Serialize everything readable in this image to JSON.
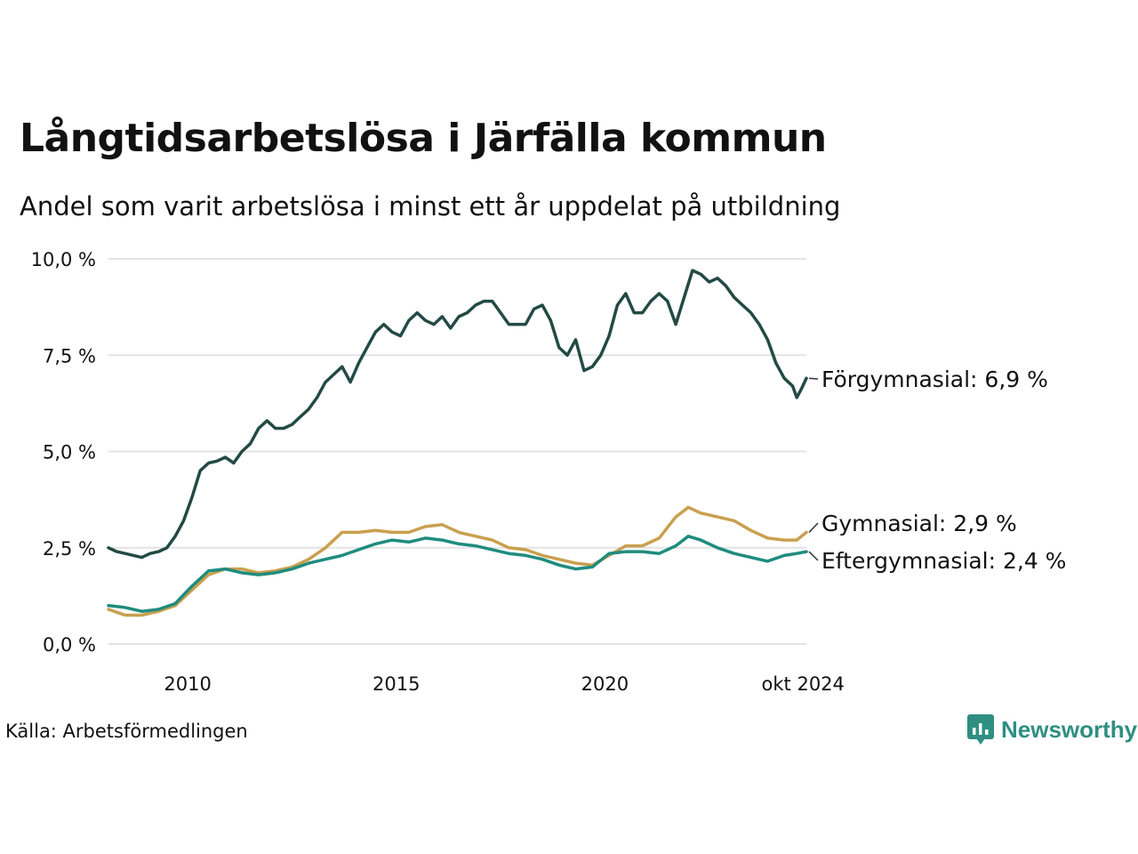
{
  "title": "Långtidsarbetslösa i Järfälla kommun",
  "subtitle": "Andel som varit arbetslösa i minst ett år uppdelat på utbildning",
  "source": "Källa: Arbetsförmedlingen",
  "brand": {
    "name": "Newsworthy",
    "icon": "newsworthy-logo-icon",
    "color": "#2e8f82"
  },
  "chart_data": {
    "type": "line",
    "title": "Långtidsarbetslösa i Järfälla kommun",
    "subtitle": "Andel som varit arbetslösa i minst ett år uppdelat på utbildning",
    "xlabel": "",
    "ylabel": "",
    "xlim": [
      2008.1,
      2024.83
    ],
    "ylim": [
      0,
      10
    ],
    "grid": true,
    "x_ticks": [
      {
        "value": 2010,
        "label": "2010"
      },
      {
        "value": 2015,
        "label": "2015"
      },
      {
        "value": 2020,
        "label": "2020"
      },
      {
        "value": 2024.75,
        "label": "okt 2024"
      }
    ],
    "y_ticks": [
      {
        "value": 0,
        "label": "0,0 %"
      },
      {
        "value": 2.5,
        "label": "2,5 %"
      },
      {
        "value": 5,
        "label": "5,0 %"
      },
      {
        "value": 7.5,
        "label": "7,5 %"
      },
      {
        "value": 10,
        "label": "10,0 %"
      }
    ],
    "series": [
      {
        "name": "Förgymnasial",
        "end_label": "Förgymnasial: 6,9 %",
        "color": "#234a45",
        "points": [
          [
            2008.1,
            2.5
          ],
          [
            2008.3,
            2.4
          ],
          [
            2008.5,
            2.35
          ],
          [
            2008.7,
            2.3
          ],
          [
            2008.9,
            2.25
          ],
          [
            2009.1,
            2.35
          ],
          [
            2009.3,
            2.4
          ],
          [
            2009.5,
            2.5
          ],
          [
            2009.7,
            2.8
          ],
          [
            2009.9,
            3.2
          ],
          [
            2010.1,
            3.8
          ],
          [
            2010.3,
            4.5
          ],
          [
            2010.5,
            4.7
          ],
          [
            2010.7,
            4.75
          ],
          [
            2010.9,
            4.85
          ],
          [
            2011.1,
            4.7
          ],
          [
            2011.3,
            5.0
          ],
          [
            2011.5,
            5.2
          ],
          [
            2011.7,
            5.6
          ],
          [
            2011.9,
            5.8
          ],
          [
            2012.1,
            5.6
          ],
          [
            2012.3,
            5.6
          ],
          [
            2012.5,
            5.7
          ],
          [
            2012.7,
            5.9
          ],
          [
            2012.9,
            6.1
          ],
          [
            2013.1,
            6.4
          ],
          [
            2013.3,
            6.8
          ],
          [
            2013.5,
            7.0
          ],
          [
            2013.7,
            7.2
          ],
          [
            2013.9,
            6.8
          ],
          [
            2014.1,
            7.3
          ],
          [
            2014.3,
            7.7
          ],
          [
            2014.5,
            8.1
          ],
          [
            2014.7,
            8.3
          ],
          [
            2014.9,
            8.1
          ],
          [
            2015.1,
            8.0
          ],
          [
            2015.3,
            8.4
          ],
          [
            2015.5,
            8.6
          ],
          [
            2015.7,
            8.4
          ],
          [
            2015.9,
            8.3
          ],
          [
            2016.1,
            8.5
          ],
          [
            2016.3,
            8.2
          ],
          [
            2016.5,
            8.5
          ],
          [
            2016.7,
            8.6
          ],
          [
            2016.9,
            8.8
          ],
          [
            2017.1,
            8.9
          ],
          [
            2017.3,
            8.9
          ],
          [
            2017.5,
            8.6
          ],
          [
            2017.7,
            8.3
          ],
          [
            2017.9,
            8.3
          ],
          [
            2018.1,
            8.3
          ],
          [
            2018.3,
            8.7
          ],
          [
            2018.5,
            8.8
          ],
          [
            2018.7,
            8.4
          ],
          [
            2018.9,
            7.7
          ],
          [
            2019.1,
            7.5
          ],
          [
            2019.3,
            7.9
          ],
          [
            2019.5,
            7.1
          ],
          [
            2019.7,
            7.2
          ],
          [
            2019.9,
            7.5
          ],
          [
            2020.1,
            8.0
          ],
          [
            2020.3,
            8.8
          ],
          [
            2020.5,
            9.1
          ],
          [
            2020.7,
            8.6
          ],
          [
            2020.9,
            8.6
          ],
          [
            2021.1,
            8.9
          ],
          [
            2021.3,
            9.1
          ],
          [
            2021.5,
            8.9
          ],
          [
            2021.7,
            8.3
          ],
          [
            2021.9,
            9.0
          ],
          [
            2022.1,
            9.7
          ],
          [
            2022.3,
            9.6
          ],
          [
            2022.5,
            9.4
          ],
          [
            2022.7,
            9.5
          ],
          [
            2022.9,
            9.3
          ],
          [
            2023.1,
            9.0
          ],
          [
            2023.3,
            8.8
          ],
          [
            2023.5,
            8.6
          ],
          [
            2023.7,
            8.3
          ],
          [
            2023.9,
            7.9
          ],
          [
            2024.1,
            7.3
          ],
          [
            2024.3,
            6.9
          ],
          [
            2024.5,
            6.7
          ],
          [
            2024.6,
            6.4
          ],
          [
            2024.7,
            6.6
          ],
          [
            2024.83,
            6.9
          ]
        ]
      },
      {
        "name": "Gymnasial",
        "end_label": "Gymnasial: 2,9 %",
        "color": "#c9a04f",
        "points": [
          [
            2008.1,
            0.9
          ],
          [
            2008.5,
            0.75
          ],
          [
            2008.9,
            0.75
          ],
          [
            2009.3,
            0.85
          ],
          [
            2009.7,
            1.0
          ],
          [
            2010.1,
            1.4
          ],
          [
            2010.5,
            1.8
          ],
          [
            2010.9,
            1.95
          ],
          [
            2011.3,
            1.95
          ],
          [
            2011.7,
            1.85
          ],
          [
            2012.1,
            1.9
          ],
          [
            2012.5,
            2.0
          ],
          [
            2012.9,
            2.2
          ],
          [
            2013.3,
            2.5
          ],
          [
            2013.7,
            2.9
          ],
          [
            2014.1,
            2.9
          ],
          [
            2014.5,
            2.95
          ],
          [
            2014.9,
            2.9
          ],
          [
            2015.3,
            2.9
          ],
          [
            2015.7,
            3.05
          ],
          [
            2016.1,
            3.1
          ],
          [
            2016.5,
            2.9
          ],
          [
            2016.9,
            2.8
          ],
          [
            2017.3,
            2.7
          ],
          [
            2017.7,
            2.5
          ],
          [
            2018.1,
            2.45
          ],
          [
            2018.5,
            2.3
          ],
          [
            2018.9,
            2.2
          ],
          [
            2019.3,
            2.1
          ],
          [
            2019.7,
            2.05
          ],
          [
            2020.1,
            2.3
          ],
          [
            2020.5,
            2.55
          ],
          [
            2020.9,
            2.55
          ],
          [
            2021.3,
            2.75
          ],
          [
            2021.7,
            3.3
          ],
          [
            2022.0,
            3.55
          ],
          [
            2022.3,
            3.4
          ],
          [
            2022.7,
            3.3
          ],
          [
            2023.1,
            3.2
          ],
          [
            2023.5,
            2.95
          ],
          [
            2023.9,
            2.75
          ],
          [
            2024.3,
            2.7
          ],
          [
            2024.6,
            2.7
          ],
          [
            2024.83,
            2.9
          ]
        ]
      },
      {
        "name": "Eftergymnasial",
        "end_label": "Eftergymnasial: 2,4 %",
        "color": "#1f8c7e",
        "points": [
          [
            2008.1,
            1.0
          ],
          [
            2008.5,
            0.95
          ],
          [
            2008.9,
            0.85
          ],
          [
            2009.3,
            0.9
          ],
          [
            2009.7,
            1.05
          ],
          [
            2010.1,
            1.5
          ],
          [
            2010.5,
            1.9
          ],
          [
            2010.9,
            1.95
          ],
          [
            2011.3,
            1.85
          ],
          [
            2011.7,
            1.8
          ],
          [
            2012.1,
            1.85
          ],
          [
            2012.5,
            1.95
          ],
          [
            2012.9,
            2.1
          ],
          [
            2013.3,
            2.2
          ],
          [
            2013.7,
            2.3
          ],
          [
            2014.1,
            2.45
          ],
          [
            2014.5,
            2.6
          ],
          [
            2014.9,
            2.7
          ],
          [
            2015.3,
            2.65
          ],
          [
            2015.7,
            2.75
          ],
          [
            2016.1,
            2.7
          ],
          [
            2016.5,
            2.6
          ],
          [
            2016.9,
            2.55
          ],
          [
            2017.3,
            2.45
          ],
          [
            2017.7,
            2.35
          ],
          [
            2018.1,
            2.3
          ],
          [
            2018.5,
            2.2
          ],
          [
            2018.9,
            2.05
          ],
          [
            2019.3,
            1.95
          ],
          [
            2019.7,
            2.0
          ],
          [
            2020.1,
            2.35
          ],
          [
            2020.5,
            2.4
          ],
          [
            2020.9,
            2.4
          ],
          [
            2021.3,
            2.35
          ],
          [
            2021.7,
            2.55
          ],
          [
            2022.0,
            2.8
          ],
          [
            2022.3,
            2.7
          ],
          [
            2022.7,
            2.5
          ],
          [
            2023.1,
            2.35
          ],
          [
            2023.5,
            2.25
          ],
          [
            2023.9,
            2.15
          ],
          [
            2024.3,
            2.3
          ],
          [
            2024.6,
            2.35
          ],
          [
            2024.83,
            2.4
          ]
        ]
      }
    ]
  }
}
